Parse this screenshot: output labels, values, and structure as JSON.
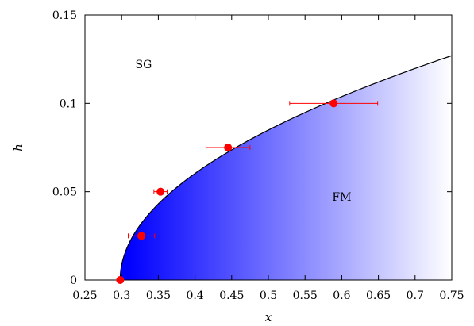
{
  "chart_data": {
    "type": "scatter",
    "xlabel": "x",
    "ylabel": "h",
    "xlim": [
      0.25,
      0.75
    ],
    "ylim": [
      0,
      0.15
    ],
    "x_ticks": [
      "0.25",
      "0.3",
      "0.35",
      "0.4",
      "0.45",
      "0.5",
      "0.55",
      "0.6",
      "0.65",
      "0.7",
      "0.75"
    ],
    "y_ticks": [
      "0",
      "0.05",
      "0.1",
      "0.15"
    ],
    "grid": false,
    "regions": [
      {
        "label": "SG",
        "x": 0.33,
        "y": 0.12
      },
      {
        "label": "FM",
        "x": 0.6,
        "y": 0.045
      }
    ],
    "boundary": {
      "x0": 0.298,
      "x1": 0.75,
      "y_end": 0.127
    },
    "points": [
      {
        "x": 0.298,
        "y": 0.0,
        "xerr": 0.0
      },
      {
        "x": 0.327,
        "y": 0.025,
        "xerr": 0.018
      },
      {
        "x": 0.353,
        "y": 0.05,
        "xerr": 0.009
      },
      {
        "x": 0.445,
        "y": 0.075,
        "xerr": 0.03
      },
      {
        "x": 0.589,
        "y": 0.1,
        "xerr": 0.06
      }
    ],
    "colors": {
      "fm_fill_strong": "#0000ff",
      "fm_fill_weak": "#ffffff",
      "points": "#ff0000",
      "boundary": "#000000"
    }
  }
}
